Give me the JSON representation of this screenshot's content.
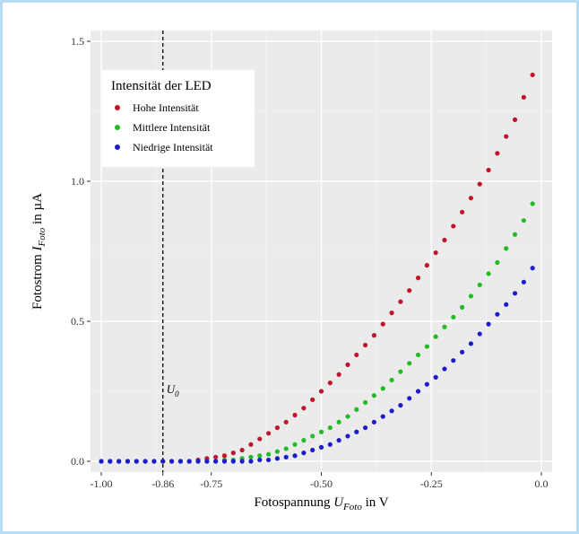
{
  "chart_data": {
    "type": "scatter",
    "xlabel_main": "Fotospannung",
    "xlabel_symbol": "U",
    "xlabel_sub": "Foto",
    "xlabel_unit": " in V",
    "ylabel_main": "Fotostrom",
    "ylabel_symbol": "I",
    "ylabel_sub": "Foto",
    "ylabel_unit": " in µA",
    "xlim": [
      -1.0,
      0.0
    ],
    "ylim": [
      0.0,
      1.5
    ],
    "x_ticks": [
      -1.0,
      -0.86,
      -0.75,
      -0.5,
      -0.25,
      0.0
    ],
    "x_tick_labels": [
      "-1.00",
      "-0.86",
      "-0.75",
      "-0.50",
      "-0.25",
      "0.0"
    ],
    "y_ticks": [
      0.0,
      0.5,
      1.0,
      1.5
    ],
    "y_tick_labels": [
      "0.0",
      "0.5",
      "1.0",
      "1.5"
    ],
    "grid": true,
    "legend": {
      "title": "Intensität der LED",
      "placement": "top-left",
      "entries": [
        "Hohe Intensität",
        "Mittlere Intensität",
        "Niedrige Intensität"
      ]
    },
    "vline": {
      "x": -0.86,
      "style": "dashed",
      "label_symbol": "U",
      "label_sub": "0"
    },
    "series": [
      {
        "name": "Hohe Intensität",
        "color": "#c0152a",
        "x": [
          -1.0,
          -0.98,
          -0.96,
          -0.94,
          -0.92,
          -0.9,
          -0.88,
          -0.86,
          -0.84,
          -0.82,
          -0.8,
          -0.78,
          -0.76,
          -0.74,
          -0.72,
          -0.7,
          -0.68,
          -0.66,
          -0.64,
          -0.62,
          -0.6,
          -0.58,
          -0.56,
          -0.54,
          -0.52,
          -0.5,
          -0.48,
          -0.46,
          -0.44,
          -0.42,
          -0.4,
          -0.38,
          -0.36,
          -0.34,
          -0.32,
          -0.3,
          -0.28,
          -0.26,
          -0.24,
          -0.22,
          -0.2,
          -0.18,
          -0.16,
          -0.14,
          -0.12,
          -0.1,
          -0.08,
          -0.06,
          -0.04,
          -0.02
        ],
        "y": [
          0.0,
          0.0,
          0.0,
          0.0,
          0.0,
          0.0,
          0.0,
          0.0,
          0.0,
          0.0,
          0.0,
          0.005,
          0.01,
          0.015,
          0.02,
          0.03,
          0.04,
          0.06,
          0.08,
          0.1,
          0.12,
          0.14,
          0.165,
          0.19,
          0.22,
          0.25,
          0.28,
          0.31,
          0.345,
          0.38,
          0.415,
          0.45,
          0.49,
          0.53,
          0.57,
          0.61,
          0.655,
          0.7,
          0.745,
          0.79,
          0.84,
          0.89,
          0.94,
          0.99,
          1.04,
          1.1,
          1.16,
          1.22,
          1.3,
          1.38
        ]
      },
      {
        "name": "Mittlere Intensität",
        "color": "#22bb22",
        "x": [
          -1.0,
          -0.98,
          -0.96,
          -0.94,
          -0.92,
          -0.9,
          -0.88,
          -0.86,
          -0.84,
          -0.82,
          -0.8,
          -0.78,
          -0.76,
          -0.74,
          -0.72,
          -0.7,
          -0.68,
          -0.66,
          -0.64,
          -0.62,
          -0.6,
          -0.58,
          -0.56,
          -0.54,
          -0.52,
          -0.5,
          -0.48,
          -0.46,
          -0.44,
          -0.42,
          -0.4,
          -0.38,
          -0.36,
          -0.34,
          -0.32,
          -0.3,
          -0.28,
          -0.26,
          -0.24,
          -0.22,
          -0.2,
          -0.18,
          -0.16,
          -0.14,
          -0.12,
          -0.1,
          -0.08,
          -0.06,
          -0.04,
          -0.02
        ],
        "y": [
          0.0,
          0.0,
          0.0,
          0.0,
          0.0,
          0.0,
          0.0,
          0.0,
          0.0,
          0.0,
          0.0,
          0.0,
          0.0,
          0.0,
          0.005,
          0.005,
          0.01,
          0.015,
          0.02,
          0.025,
          0.035,
          0.045,
          0.06,
          0.075,
          0.09,
          0.105,
          0.12,
          0.14,
          0.16,
          0.185,
          0.21,
          0.235,
          0.26,
          0.29,
          0.32,
          0.35,
          0.38,
          0.41,
          0.445,
          0.48,
          0.515,
          0.55,
          0.59,
          0.63,
          0.67,
          0.71,
          0.76,
          0.81,
          0.86,
          0.92
        ]
      },
      {
        "name": "Niedrige Intensität",
        "color": "#1c1ccc",
        "x": [
          -1.0,
          -0.98,
          -0.96,
          -0.94,
          -0.92,
          -0.9,
          -0.88,
          -0.86,
          -0.84,
          -0.82,
          -0.8,
          -0.78,
          -0.76,
          -0.74,
          -0.72,
          -0.7,
          -0.68,
          -0.66,
          -0.64,
          -0.62,
          -0.6,
          -0.58,
          -0.56,
          -0.54,
          -0.52,
          -0.5,
          -0.48,
          -0.46,
          -0.44,
          -0.42,
          -0.4,
          -0.38,
          -0.36,
          -0.34,
          -0.32,
          -0.3,
          -0.28,
          -0.26,
          -0.24,
          -0.22,
          -0.2,
          -0.18,
          -0.16,
          -0.14,
          -0.12,
          -0.1,
          -0.08,
          -0.06,
          -0.04,
          -0.02
        ],
        "y": [
          0.0,
          0.0,
          0.0,
          0.0,
          0.0,
          0.0,
          0.0,
          0.0,
          0.0,
          0.0,
          0.0,
          0.0,
          0.0,
          0.0,
          0.0,
          0.0,
          0.0,
          0.0,
          0.005,
          0.005,
          0.01,
          0.015,
          0.02,
          0.03,
          0.04,
          0.05,
          0.06,
          0.075,
          0.09,
          0.105,
          0.12,
          0.14,
          0.16,
          0.18,
          0.2,
          0.225,
          0.25,
          0.275,
          0.3,
          0.33,
          0.36,
          0.39,
          0.42,
          0.455,
          0.49,
          0.525,
          0.56,
          0.6,
          0.64,
          0.69
        ]
      }
    ]
  }
}
